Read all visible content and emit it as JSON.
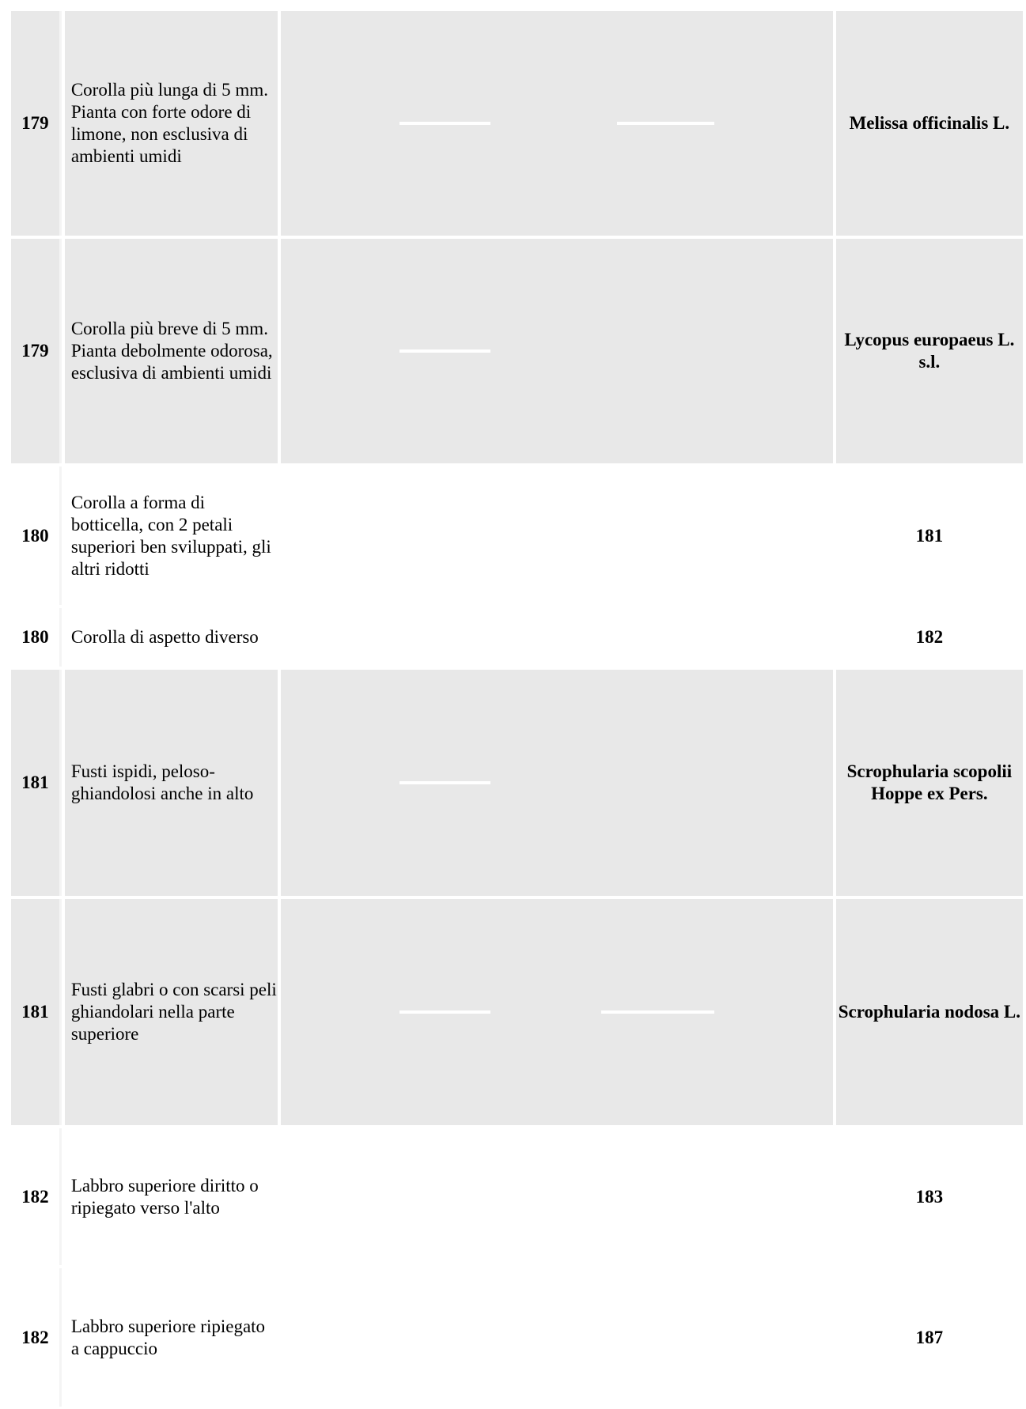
{
  "rows": [
    {
      "number": "179",
      "description": "Corolla più lunga di 5 mm. Pianta con forte odore di limone, non esclusiva di ambienti umidi",
      "result": "Melissa officinalis L."
    },
    {
      "number": "179",
      "description": "Corolla più breve di 5 mm. Pianta debolmente odorosa, esclusiva di ambienti umidi",
      "result": "Lycopus europaeus L. s.l."
    },
    {
      "number": "180",
      "description": "Corolla a forma di botticella, con 2 petali superiori ben sviluppati, gli altri ridotti",
      "result": "181"
    },
    {
      "number": "180",
      "description": "Corolla di aspetto diverso",
      "result": "182"
    },
    {
      "number": "181",
      "description": "Fusti ispidi, peloso-ghiandolosi anche in alto",
      "result": "Scrophularia scopolii Hoppe ex Pers."
    },
    {
      "number": "181",
      "description": "Fusti glabri o con scarsi peli ghiandolari nella parte superiore",
      "result": "Scrophularia nodosa L."
    },
    {
      "number": "182",
      "description": "Labbro superiore diritto o ripiegato verso l'alto",
      "result": "183"
    },
    {
      "number": "182",
      "description": "Labbro superiore ripiegato a cappuccio",
      "result": "187"
    }
  ]
}
